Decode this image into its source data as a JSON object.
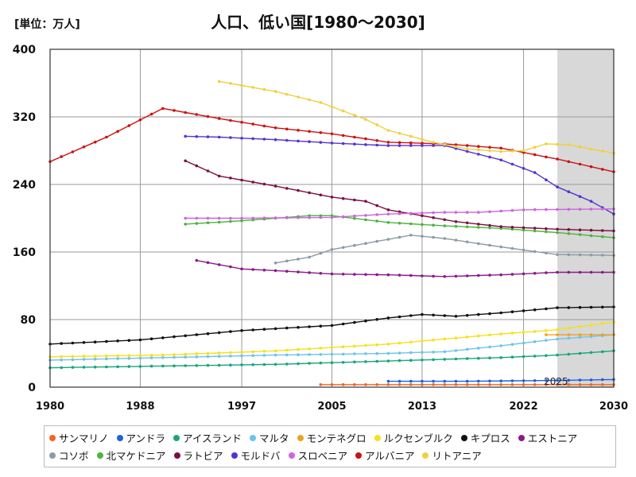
{
  "chart_data": {
    "type": "line",
    "title": "人口、低い国[1980～2030]",
    "unit_label": "[単位：万人]",
    "ylim": [
      0,
      400
    ],
    "xlim": [
      1980,
      2030
    ],
    "y_ticks": [
      0,
      80,
      160,
      240,
      320,
      400
    ],
    "x_ticks": [
      1980,
      1988,
      1997,
      2005,
      2013,
      2022,
      2030
    ],
    "forecast_start": 2025,
    "forecast_label": "2025",
    "grid": true,
    "legend_position": "bottom",
    "series": [
      {
        "name": "サンマリノ",
        "color": "#f06522",
        "points": [
          [
            2004,
            3
          ],
          [
            2030,
            3
          ]
        ]
      },
      {
        "name": "アンドラ",
        "color": "#1f5fe0",
        "points": [
          [
            2010,
            7
          ],
          [
            2017,
            7
          ],
          [
            2025,
            8
          ],
          [
            2030,
            9
          ]
        ]
      },
      {
        "name": "アイスランド",
        "color": "#17a67a",
        "points": [
          [
            1980,
            23
          ],
          [
            1990,
            25
          ],
          [
            2000,
            27
          ],
          [
            2010,
            31
          ],
          [
            2020,
            35
          ],
          [
            2025,
            38
          ],
          [
            2030,
            43
          ]
        ]
      },
      {
        "name": "マルタ",
        "color": "#6ec3ee",
        "points": [
          [
            1980,
            32
          ],
          [
            1990,
            35
          ],
          [
            2000,
            38
          ],
          [
            2010,
            40
          ],
          [
            2015,
            42
          ],
          [
            2020,
            49
          ],
          [
            2025,
            57
          ],
          [
            2030,
            62
          ]
        ]
      },
      {
        "name": "モンテネグロ",
        "color": "#f0a020",
        "points": [
          [
            2024,
            62
          ],
          [
            2030,
            62
          ]
        ]
      },
      {
        "name": "ルクセンブルク",
        "color": "#f5e21a",
        "points": [
          [
            1980,
            36
          ],
          [
            1990,
            38
          ],
          [
            2000,
            43
          ],
          [
            2010,
            51
          ],
          [
            2015,
            57
          ],
          [
            2020,
            63
          ],
          [
            2025,
            68
          ],
          [
            2030,
            77
          ]
        ]
      },
      {
        "name": "キプロス",
        "color": "#111111",
        "points": [
          [
            1980,
            51
          ],
          [
            1988,
            56
          ],
          [
            1997,
            67
          ],
          [
            2005,
            73
          ],
          [
            2010,
            82
          ],
          [
            2013,
            86
          ],
          [
            2016,
            84
          ],
          [
            2020,
            88
          ],
          [
            2025,
            94
          ],
          [
            2030,
            95
          ]
        ]
      },
      {
        "name": "エストニア",
        "color": "#8a1a8a",
        "points": [
          [
            1993,
            150
          ],
          [
            1997,
            140
          ],
          [
            2000,
            138
          ],
          [
            2005,
            134
          ],
          [
            2010,
            133
          ],
          [
            2015,
            131
          ],
          [
            2020,
            133
          ],
          [
            2025,
            136
          ],
          [
            2030,
            136
          ]
        ]
      },
      {
        "name": "コソボ",
        "color": "#8e9aa4",
        "points": [
          [
            2000,
            147
          ],
          [
            2003,
            154
          ],
          [
            2005,
            163
          ],
          [
            2010,
            175
          ],
          [
            2012,
            180
          ],
          [
            2015,
            176
          ],
          [
            2020,
            166
          ],
          [
            2025,
            157
          ],
          [
            2030,
            156
          ]
        ]
      },
      {
        "name": "北マケドニア",
        "color": "#4bb43c",
        "points": [
          [
            1992,
            193
          ],
          [
            1997,
            197
          ],
          [
            2000,
            200
          ],
          [
            2003,
            203
          ],
          [
            2005,
            203
          ],
          [
            2010,
            195
          ],
          [
            2015,
            191
          ],
          [
            2020,
            188
          ],
          [
            2025,
            183
          ],
          [
            2030,
            177
          ]
        ]
      },
      {
        "name": "ラトビア",
        "color": "#7a1040",
        "points": [
          [
            1992,
            268
          ],
          [
            1995,
            250
          ],
          [
            2000,
            238
          ],
          [
            2005,
            225
          ],
          [
            2008,
            220
          ],
          [
            2010,
            210
          ],
          [
            2013,
            203
          ],
          [
            2016,
            196
          ],
          [
            2020,
            190
          ],
          [
            2025,
            187
          ],
          [
            2030,
            185
          ]
        ]
      },
      {
        "name": "モルドバ",
        "color": "#5533d0",
        "points": [
          [
            1992,
            297
          ],
          [
            1995,
            296
          ],
          [
            2000,
            293
          ],
          [
            2005,
            289
          ],
          [
            2010,
            286
          ],
          [
            2015,
            286
          ],
          [
            2020,
            269
          ],
          [
            2023,
            254
          ],
          [
            2025,
            237
          ],
          [
            2028,
            220
          ],
          [
            2030,
            205
          ]
        ]
      },
      {
        "name": "スロベニア",
        "color": "#cc66dd",
        "points": [
          [
            1992,
            200
          ],
          [
            1997,
            200
          ],
          [
            2005,
            201
          ],
          [
            2010,
            205
          ],
          [
            2015,
            207
          ],
          [
            2018,
            207
          ],
          [
            2022,
            210
          ],
          [
            2030,
            211
          ]
        ]
      },
      {
        "name": "アルバニア",
        "color": "#cc1111",
        "points": [
          [
            1980,
            267
          ],
          [
            1985,
            296
          ],
          [
            1990,
            330
          ],
          [
            1995,
            318
          ],
          [
            2000,
            307
          ],
          [
            2005,
            300
          ],
          [
            2010,
            290
          ],
          [
            2015,
            288
          ],
          [
            2020,
            283
          ],
          [
            2025,
            270
          ],
          [
            2030,
            255
          ]
        ]
      },
      {
        "name": "リトアニア",
        "color": "#f0d040",
        "points": [
          [
            1995,
            362
          ],
          [
            2000,
            350
          ],
          [
            2004,
            337
          ],
          [
            2008,
            317
          ],
          [
            2010,
            304
          ],
          [
            2014,
            290
          ],
          [
            2017,
            282
          ],
          [
            2020,
            279
          ],
          [
            2022,
            280
          ],
          [
            2024,
            288
          ],
          [
            2026,
            287
          ],
          [
            2030,
            277
          ]
        ]
      }
    ]
  }
}
